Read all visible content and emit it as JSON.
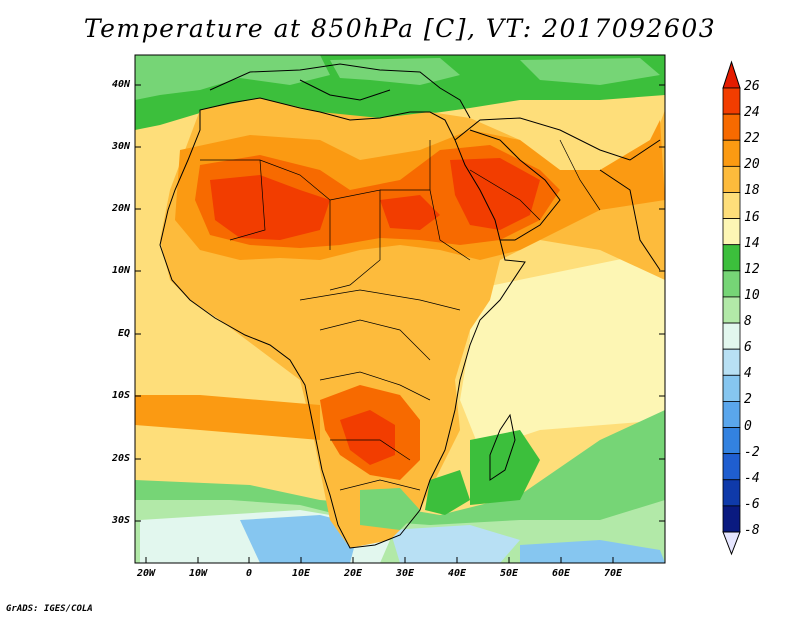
{
  "title": "Temperature at 850hPa [C], VT: 2017092603",
  "footer": "GrADS: IGES/COLA",
  "lat_labels": [
    "40N",
    "30N",
    "20N",
    "10N",
    "EQ",
    "10S",
    "20S",
    "30S"
  ],
  "lon_labels": [
    "20W",
    "10W",
    "0",
    "10E",
    "20E",
    "30E",
    "40E",
    "50E",
    "60E",
    "70E"
  ],
  "colorbar": {
    "labels": [
      "26",
      "24",
      "22",
      "20",
      "18",
      "16",
      "14",
      "12",
      "10",
      "8",
      "6",
      "4",
      "2",
      "0",
      "-2",
      "-4",
      "-6",
      "-8"
    ],
    "colors": [
      "#e51c00",
      "#f23d00",
      "#f76a00",
      "#fb9a12",
      "#fdbb3c",
      "#fede7a",
      "#fdf6b4",
      "#3cbf3c",
      "#76d576",
      "#b2e9a8",
      "#e2f7ee",
      "#b8e0f4",
      "#86c6f0",
      "#5aa6ec",
      "#3382e0",
      "#1f5ed0",
      "#0f3aaa",
      "#0a1a80"
    ]
  }
}
